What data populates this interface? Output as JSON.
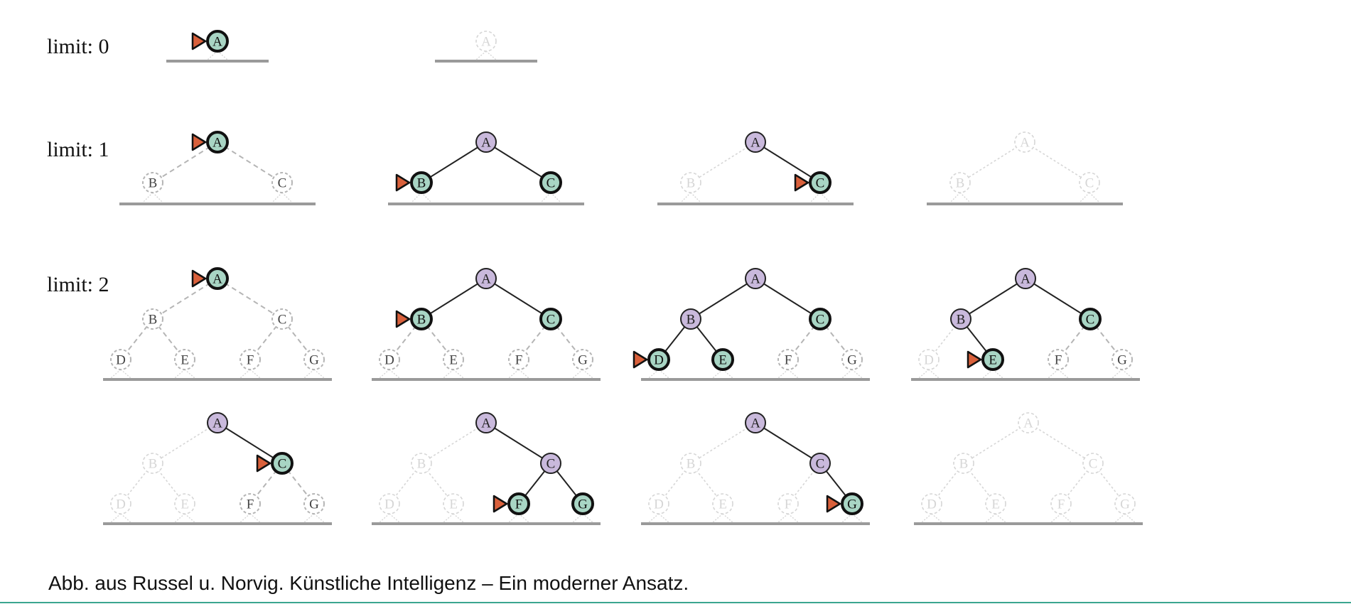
{
  "caption": "Abb. aus Russel u. Norvig. Künstliche Intelligenz – Ein moderner Ansatz.",
  "colors": {
    "expanded": "#c9b9dc",
    "frontier": "#a8d5c4",
    "pointer": "#d9603b",
    "ground": "#9a9a9a",
    "dashed": "#b5b5b5",
    "faded": "#d6d6d6",
    "caption_rule": "#3aa58f"
  },
  "rows": [
    {
      "label": "limit: 0",
      "depth": 0,
      "panels": [
        {
          "A": "frontier",
          "pointer": "A"
        },
        {
          "A": "faded"
        }
      ]
    },
    {
      "label": "limit: 1",
      "depth": 1,
      "panels": [
        {
          "A": "frontier",
          "B": "dashed",
          "C": "dashed",
          "pointer": "A"
        },
        {
          "A": "expanded",
          "B": "frontier",
          "C": "frontier",
          "pointer": "B"
        },
        {
          "A": "expanded",
          "B": "faded",
          "C": "frontier",
          "pointer": "C"
        },
        {
          "A": "faded",
          "B": "faded",
          "C": "faded"
        }
      ]
    },
    {
      "label": "limit: 2",
      "depth": 2,
      "panels": [
        {
          "A": "frontier",
          "B": "dashed",
          "C": "dashed",
          "D": "dashed",
          "E": "dashed",
          "F": "dashed",
          "G": "dashed",
          "pointer": "A"
        },
        {
          "A": "expanded",
          "B": "frontier",
          "C": "frontier",
          "D": "dashed",
          "E": "dashed",
          "F": "dashed",
          "G": "dashed",
          "pointer": "B"
        },
        {
          "A": "expanded",
          "B": "expanded",
          "C": "frontier",
          "D": "frontier",
          "E": "frontier",
          "F": "dashed",
          "G": "dashed",
          "pointer": "D"
        },
        {
          "A": "expanded",
          "B": "expanded",
          "C": "frontier",
          "D": "faded",
          "E": "frontier",
          "F": "dashed",
          "G": "dashed",
          "pointer": "E"
        }
      ]
    },
    {
      "label": "",
      "depth": 2,
      "panels": [
        {
          "A": "expanded",
          "B": "faded",
          "C": "frontier",
          "D": "faded",
          "E": "faded",
          "F": "dashed",
          "G": "dashed",
          "pointer": "C"
        },
        {
          "A": "expanded",
          "B": "faded",
          "C": "expanded",
          "D": "faded",
          "E": "faded",
          "F": "frontier",
          "G": "frontier",
          "pointer": "F"
        },
        {
          "A": "expanded",
          "B": "faded",
          "C": "expanded",
          "D": "faded",
          "E": "faded",
          "F": "faded",
          "G": "frontier",
          "pointer": "G"
        },
        {
          "A": "faded",
          "B": "faded",
          "C": "faded",
          "D": "faded",
          "E": "faded",
          "F": "faded",
          "G": "faded"
        }
      ]
    }
  ]
}
